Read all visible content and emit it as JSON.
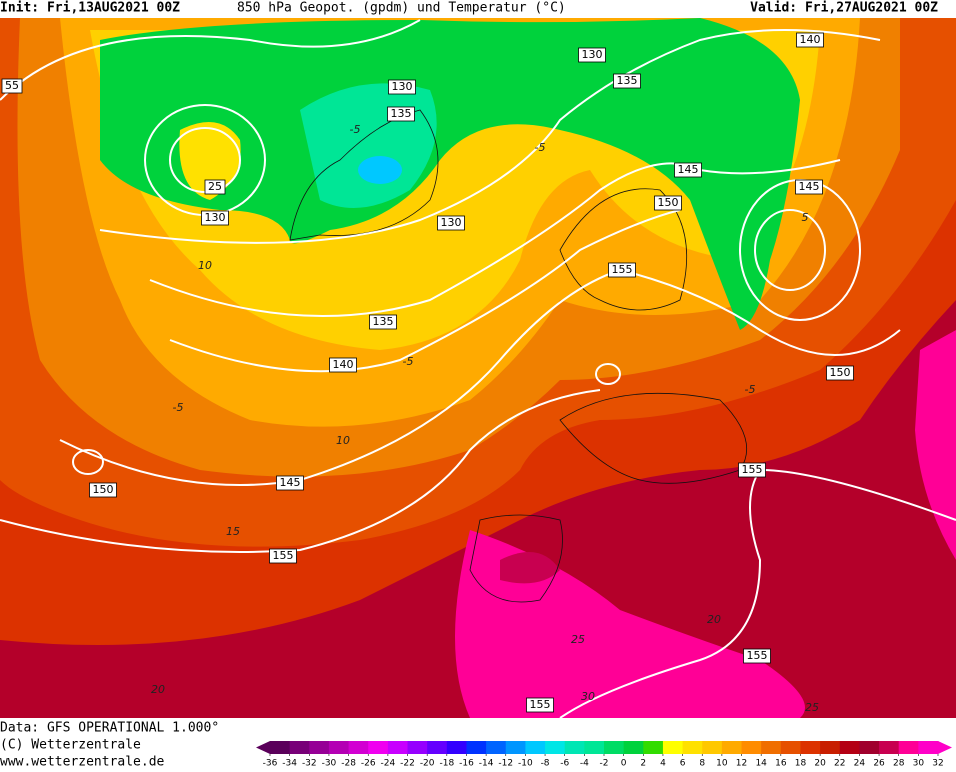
{
  "header": {
    "init": "Init: Fri,13AUG2021 00Z",
    "title": "850 hPa Geopot. (gpdm) und Temperatur (°C)",
    "valid": "Valid: Fri,27AUG2021 00Z"
  },
  "map": {
    "geopotential_labels": [
      55,
      130,
      140,
      135,
      130,
      135,
      145,
      145,
      25,
      130,
      130,
      150,
      155,
      135,
      140,
      150,
      145,
      150,
      155,
      155,
      155,
      155
    ],
    "temperature_labels": [
      -5,
      -5,
      10,
      -5,
      -5,
      10,
      15,
      20,
      25,
      30,
      25,
      20,
      -5,
      5
    ]
  },
  "footer": {
    "data": "Data: GFS OPERATIONAL 1.000°",
    "copyright": "(C) Wetterzentrale",
    "url": "www.wetterzentrale.de"
  },
  "colorbar": {
    "ticks": [
      -36,
      -34,
      -32,
      -30,
      -28,
      -26,
      -24,
      -22,
      -20,
      -18,
      -16,
      -14,
      -12,
      -10,
      -8,
      -6,
      -4,
      -2,
      0,
      2,
      4,
      6,
      8,
      10,
      12,
      14,
      16,
      18,
      20,
      22,
      24,
      26,
      28,
      30,
      32
    ],
    "colors": [
      "#5a005a",
      "#780078",
      "#960096",
      "#b400b4",
      "#d200d2",
      "#f000f0",
      "#c800ff",
      "#9600ff",
      "#6400ff",
      "#3200ff",
      "#0032ff",
      "#0064ff",
      "#0096ff",
      "#00c8ff",
      "#00e6e6",
      "#00e6b4",
      "#00e696",
      "#00dc64",
      "#00d23c",
      "#32dc00",
      "#ffff00",
      "#ffe100",
      "#ffc800",
      "#ffaa00",
      "#ff8c00",
      "#f06e00",
      "#e65000",
      "#dc3200",
      "#c81e00",
      "#b40014",
      "#a0002d",
      "#c80050",
      "#ff0096",
      "#ff00c8"
    ]
  }
}
